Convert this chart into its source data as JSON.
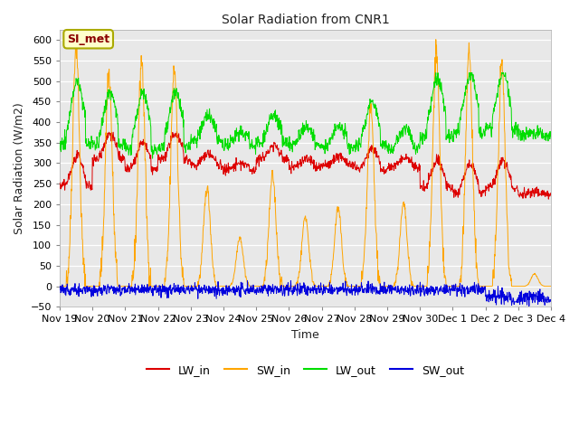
{
  "title": "Solar Radiation from CNR1",
  "xlabel": "Time",
  "ylabel": "Solar Radiation (W/m2)",
  "ylim": [
    -50,
    625
  ],
  "yticks": [
    -50,
    0,
    50,
    100,
    150,
    200,
    250,
    300,
    350,
    400,
    450,
    500,
    550,
    600
  ],
  "figure_bg": "#ffffff",
  "plot_bg": "#e8e8e8",
  "grid_color": "#ffffff",
  "annotation_text": "SI_met",
  "annotation_color": "#8B0000",
  "annotation_bg": "#ffffcc",
  "annotation_edge": "#aaaa00",
  "colors": {
    "LW_in": "#dd0000",
    "SW_in": "#ffa500",
    "LW_out": "#00dd00",
    "SW_out": "#0000dd"
  },
  "n_days": 15,
  "x_tick_labels": [
    "Nov 19",
    "Nov 20",
    "Nov 21",
    "Nov 22",
    "Nov 23",
    "Nov 24",
    "Nov 25",
    "Nov 26",
    "Nov 27",
    "Nov 28",
    "Nov 29",
    "Nov 30",
    "Dec 1",
    "Dec 2",
    "Dec 3",
    "Dec 4"
  ],
  "legend_labels": [
    "LW_in",
    "SW_in",
    "LW_out",
    "SW_out"
  ],
  "sw_peak_amps": [
    590,
    520,
    550,
    530,
    240,
    120,
    270,
    170,
    190,
    430,
    200,
    570,
    570,
    540,
    30
  ],
  "lw_in_day_base": [
    245,
    310,
    285,
    310,
    295,
    285,
    310,
    290,
    295,
    285,
    290,
    240,
    230,
    240,
    225
  ],
  "lw_out_day_base": [
    350,
    345,
    335,
    340,
    355,
    345,
    350,
    345,
    340,
    345,
    335,
    365,
    375,
    385,
    368
  ]
}
